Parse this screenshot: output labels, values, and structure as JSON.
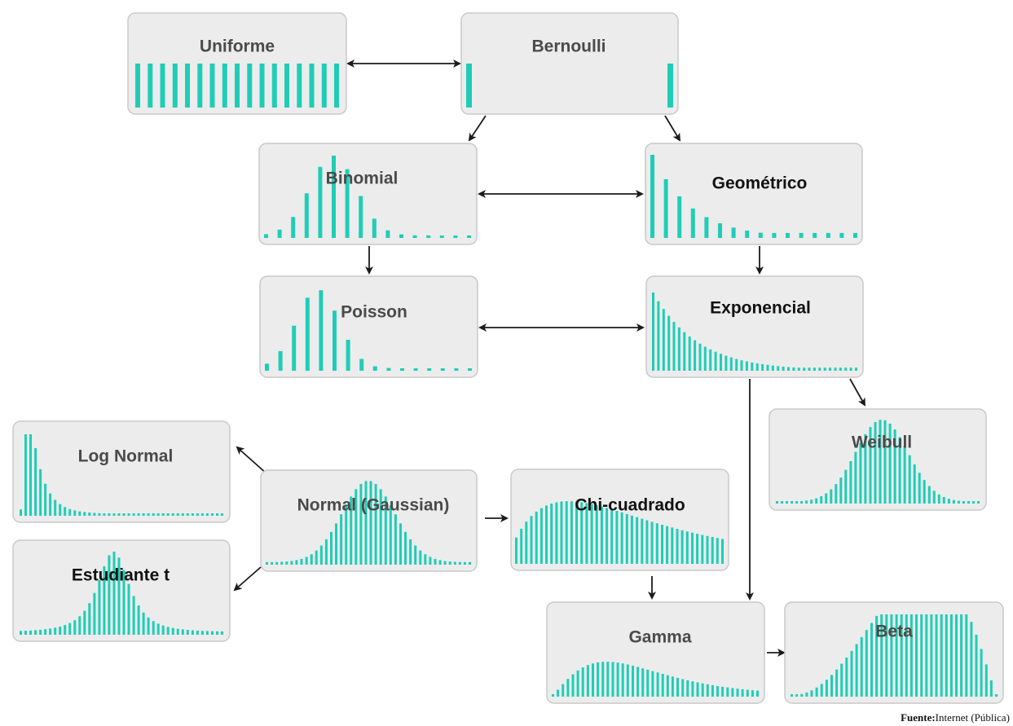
{
  "colors": {
    "bar": "#1fcdb7",
    "box_fill": "#ececec",
    "box_stroke": "#c9c9c9",
    "title": "#4a4a4a",
    "arrow": "#1b1b1b"
  },
  "nodes": [
    {
      "id": "uniforme",
      "label": "Uniforme",
      "shape": "uniform",
      "title_dark": false
    },
    {
      "id": "bernoulli",
      "label": "Bernoulli",
      "shape": "bernoulli",
      "title_dark": false
    },
    {
      "id": "binomial",
      "label": "Binomial",
      "shape": "binomial",
      "title_dark": false
    },
    {
      "id": "geometrico",
      "label": "Geométrico",
      "shape": "geometric",
      "title_dark": true
    },
    {
      "id": "poisson",
      "label": "Poisson",
      "shape": "poisson",
      "title_dark": false
    },
    {
      "id": "exponencial",
      "label": "Exponencial",
      "shape": "exponential",
      "title_dark": true
    },
    {
      "id": "weibull",
      "label": "Weibull",
      "shape": "weibull",
      "title_dark": false
    },
    {
      "id": "log-normal",
      "label": "Log Normal",
      "shape": "lognormal",
      "title_dark": false
    },
    {
      "id": "normal",
      "label": "Normal (Gaussian)",
      "shape": "normal",
      "title_dark": false
    },
    {
      "id": "chi-cuadrado",
      "label": "Chi-cuadrado",
      "shape": "chi",
      "title_dark": true
    },
    {
      "id": "estudiante-t",
      "label": "Estudiante t",
      "shape": "student",
      "title_dark": true
    },
    {
      "id": "gamma",
      "label": "Gamma",
      "shape": "gamma",
      "title_dark": false
    },
    {
      "id": "beta",
      "label": "Beta",
      "shape": "beta",
      "title_dark": false
    }
  ],
  "edges": [
    {
      "from": "uniforme",
      "to": "bernoulli",
      "bidirectional": true
    },
    {
      "from": "bernoulli",
      "to": "binomial",
      "bidirectional": false
    },
    {
      "from": "bernoulli",
      "to": "geometrico",
      "bidirectional": false
    },
    {
      "from": "binomial",
      "to": "geometrico",
      "bidirectional": true
    },
    {
      "from": "binomial",
      "to": "poisson",
      "bidirectional": false
    },
    {
      "from": "geometrico",
      "to": "exponencial",
      "bidirectional": false
    },
    {
      "from": "poisson",
      "to": "exponencial",
      "bidirectional": true
    },
    {
      "from": "exponencial",
      "to": "weibull",
      "bidirectional": false
    },
    {
      "from": "exponencial",
      "to": "gamma",
      "bidirectional": false
    },
    {
      "from": "normal",
      "to": "log-normal",
      "bidirectional": false
    },
    {
      "from": "normal",
      "to": "estudiante-t",
      "bidirectional": false
    },
    {
      "from": "normal",
      "to": "chi-cuadrado",
      "bidirectional": false
    },
    {
      "from": "chi-cuadrado",
      "to": "gamma",
      "bidirectional": false
    },
    {
      "from": "gamma",
      "to": "beta",
      "bidirectional": false
    }
  ],
  "source": {
    "label": "Fuente:",
    "value": "Internet (Pública)"
  }
}
